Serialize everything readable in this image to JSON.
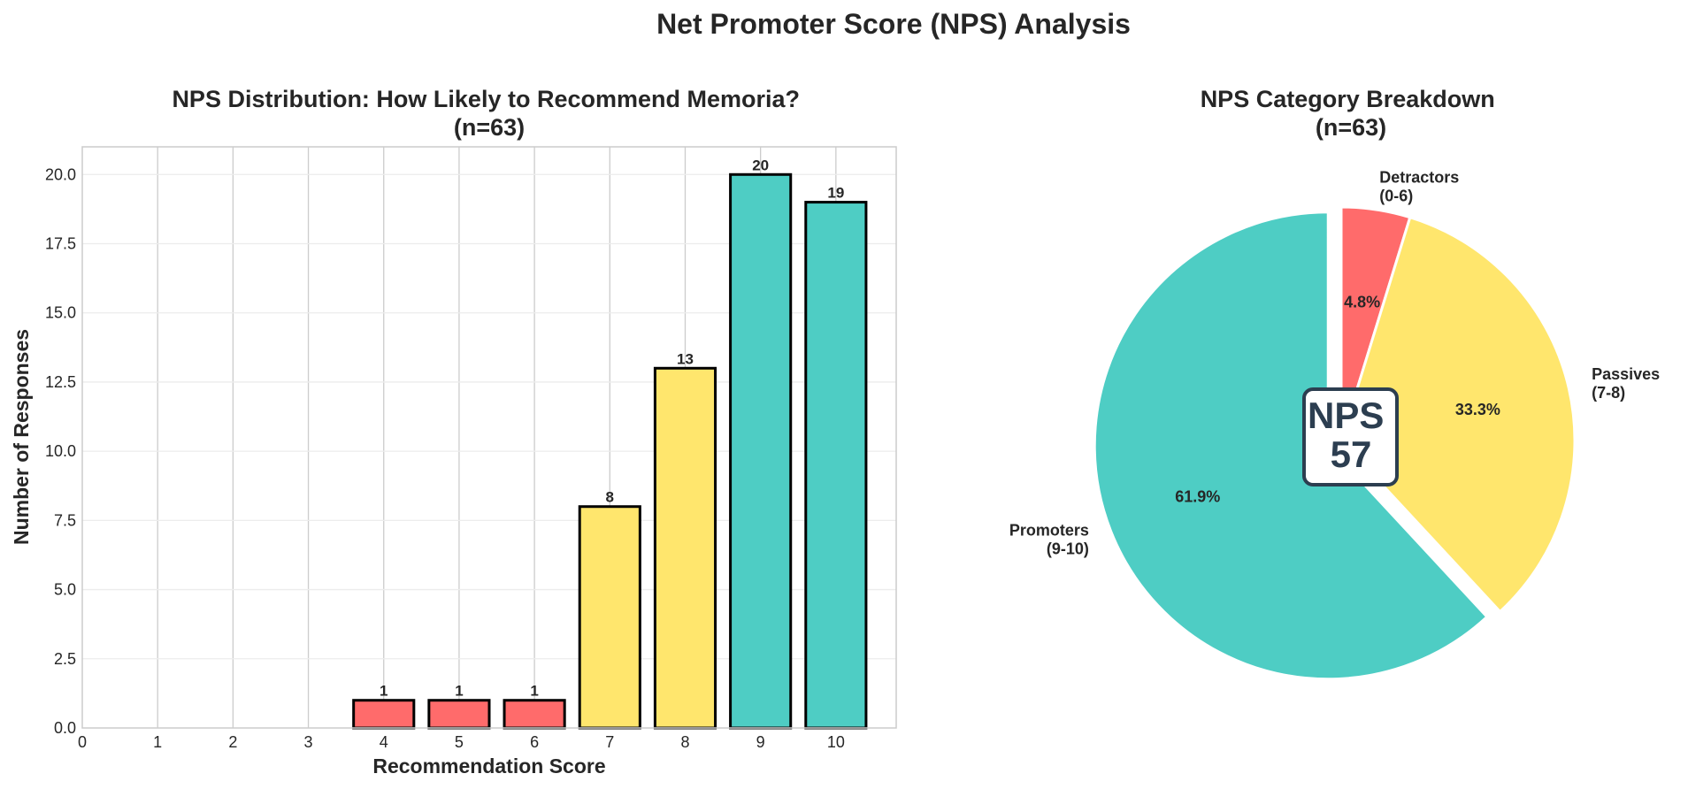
{
  "figure_title": "Net Promoter Score (NPS) Analysis",
  "chart_data": [
    {
      "type": "bar",
      "title": [
        "NPS Distribution: How Likely to Recommend Memoria?",
        "(n=63)"
      ],
      "xlabel": "Recommendation Score",
      "ylabel": "Number of Responses",
      "x": [
        4,
        5,
        6,
        7,
        8,
        9,
        10
      ],
      "values": [
        1,
        1,
        1,
        8,
        13,
        20,
        19
      ],
      "colors": [
        "#FF6B6B",
        "#FF6B6B",
        "#FF6B6B",
        "#FFE66D",
        "#FFE66D",
        "#4ECDC4",
        "#4ECDC4"
      ],
      "xlim": [
        0,
        10.8
      ],
      "ylim": [
        0,
        21
      ],
      "xticks": [
        0,
        1,
        2,
        3,
        4,
        5,
        6,
        7,
        8,
        9,
        10
      ],
      "yticks": [
        0,
        2.5,
        5,
        7.5,
        10,
        12.5,
        15,
        17.5,
        20
      ],
      "ytick_labels": [
        "0.0",
        "2.5",
        "5.0",
        "7.5",
        "10.0",
        "12.5",
        "15.0",
        "17.5",
        "20.0"
      ],
      "grid": true
    },
    {
      "type": "pie",
      "title": [
        "NPS Category Breakdown",
        "(n=63)"
      ],
      "slices": [
        {
          "label": [
            "Detractors",
            "(0-6)"
          ],
          "value": 3,
          "percent": "4.8%",
          "color": "#FF6B6B"
        },
        {
          "label": [
            "Passives",
            "(7-8)"
          ],
          "value": 21,
          "percent": "33.3%",
          "color": "#FFE66D"
        },
        {
          "label": [
            "Promoters",
            "(9-10)"
          ],
          "value": 39,
          "percent": "61.9%",
          "color": "#4ECDC4",
          "exploded": true
        }
      ],
      "center_label": [
        "NPS",
        "57"
      ]
    }
  ]
}
